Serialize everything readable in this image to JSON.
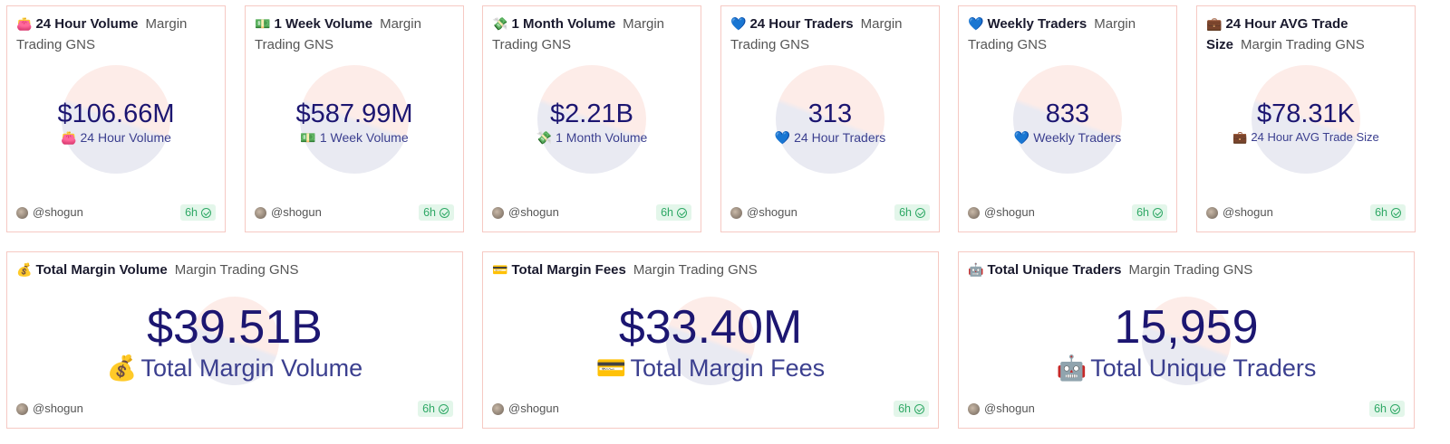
{
  "author": "@shogun",
  "age": "6h",
  "small_cards": [
    {
      "icon": "👛",
      "icon_name": "purse-icon",
      "title": "24 Hour Volume",
      "subtitle": "Margin Trading GNS",
      "value": "$106.66M",
      "label": "24 Hour Volume"
    },
    {
      "icon": "💵",
      "icon_name": "dollar-banknote-icon",
      "title": "1 Week Volume",
      "subtitle": "Margin Trading GNS",
      "value": "$587.99M",
      "label": "1 Week Volume"
    },
    {
      "icon": "💸",
      "icon_name": "money-with-wings-icon",
      "title": "1 Month Volume",
      "subtitle": "Margin Trading GNS",
      "value": "$2.21B",
      "label": "1 Month Volume"
    },
    {
      "icon": "💙",
      "icon_name": "blue-heart-icon",
      "title": "24 Hour Traders",
      "subtitle": "Margin Trading GNS",
      "value": "313",
      "label": "24 Hour Traders"
    },
    {
      "icon": "💙",
      "icon_name": "blue-heart-icon",
      "title": "Weekly Traders",
      "subtitle": "Margin Trading GNS",
      "value": "833",
      "label": "Weekly Traders"
    },
    {
      "icon": "💼",
      "icon_name": "briefcase-icon",
      "title": "24 Hour AVG Trade Size",
      "subtitle": "Margin Trading GNS",
      "value": "$78.31K",
      "label": "24 Hour AVG Trade Size"
    }
  ],
  "large_cards": [
    {
      "icon": "💰",
      "icon_name": "money-bag-icon",
      "title": "Total Margin Volume",
      "subtitle": "Margin Trading GNS",
      "value": "$39.51B",
      "label": "Total Margin Volume"
    },
    {
      "icon": "💳",
      "icon_name": "credit-card-icon",
      "title": "Total Margin Fees",
      "subtitle": "Margin Trading GNS",
      "value": "$33.40M",
      "label": "Total Margin Fees"
    },
    {
      "icon": "🤖",
      "icon_name": "robot-icon",
      "title": "Total Unique Traders",
      "subtitle": "Margin Trading GNS",
      "value": "15,959",
      "label": "Total Unique Traders"
    }
  ]
}
